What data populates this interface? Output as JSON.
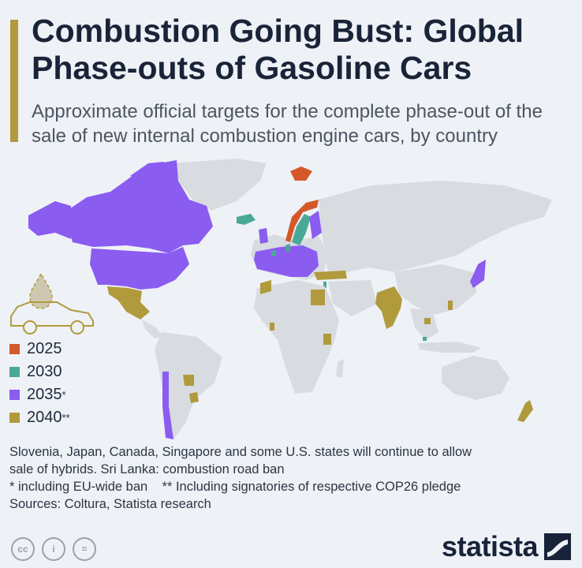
{
  "header": {
    "title": "Combustion Going Bust: Global Phase-outs of Gasoline Cars",
    "subtitle": "Approximate official targets for the complete phase-out of the sale of new internal combustion engine cars, by country"
  },
  "colors": {
    "accent": "#b19a3e",
    "land": "#d8dbe0",
    "y2025": "#d4582a",
    "y2030": "#4aa896",
    "y2035": "#8a5cf0",
    "y2040": "#b09a3c",
    "background": "#eef1f6"
  },
  "icons": {
    "decoration": "car-with-droplet-icon",
    "license": [
      "cc-icon",
      "by-icon",
      "nd-icon"
    ],
    "logo": "statista-logo-icon"
  },
  "legend": [
    {
      "label": "2025",
      "sup": "",
      "color": "#d4582a"
    },
    {
      "label": "2030",
      "sup": "",
      "color": "#4aa896"
    },
    {
      "label": "2035",
      "sup": "*",
      "color": "#8a5cf0"
    },
    {
      "label": "2040",
      "sup": "**",
      "color": "#b09a3c"
    }
  ],
  "notes": {
    "line1": "Slovenia, Japan, Canada, Singapore and some U.S. states will continue to allow",
    "line2": "sale of hybrids. Sri Lanka: combustion road ban",
    "line3": "* including EU-wide ban    ** Including signatories of respective COP26 pledge",
    "line4": "Sources: Coltura, Statista research"
  },
  "footer": {
    "cc_labels": [
      "cc",
      "i",
      "="
    ],
    "brand": "statista"
  },
  "chart_data": {
    "type": "choropleth",
    "categories": [
      "2025",
      "2030",
      "2035",
      "2040"
    ],
    "regions": [
      {
        "name": "Norway",
        "year": "2025"
      },
      {
        "name": "Svalbard",
        "year": "2025"
      },
      {
        "name": "Iceland",
        "year": "2030"
      },
      {
        "name": "Sweden",
        "year": "2030"
      },
      {
        "name": "Denmark",
        "year": "2030"
      },
      {
        "name": "Netherlands",
        "year": "2030"
      },
      {
        "name": "Israel",
        "year": "2030"
      },
      {
        "name": "Singapore",
        "year": "2030"
      },
      {
        "name": "Canada",
        "year": "2035"
      },
      {
        "name": "United States",
        "year": "2035"
      },
      {
        "name": "European Union",
        "year": "2035"
      },
      {
        "name": "United Kingdom",
        "year": "2035"
      },
      {
        "name": "Chile",
        "year": "2035"
      },
      {
        "name": "Japan",
        "year": "2035"
      },
      {
        "name": "Mexico",
        "year": "2040"
      },
      {
        "name": "Paraguay",
        "year": "2040"
      },
      {
        "name": "Uruguay",
        "year": "2040"
      },
      {
        "name": "Morocco",
        "year": "2040"
      },
      {
        "name": "Egypt",
        "year": "2040"
      },
      {
        "name": "Turkey",
        "year": "2040"
      },
      {
        "name": "Ghana",
        "year": "2040"
      },
      {
        "name": "Kenya",
        "year": "2040"
      },
      {
        "name": "India",
        "year": "2040"
      },
      {
        "name": "Cambodia",
        "year": "2040"
      },
      {
        "name": "Philippines",
        "year": "2040"
      },
      {
        "name": "New Zealand",
        "year": "2040"
      }
    ]
  }
}
